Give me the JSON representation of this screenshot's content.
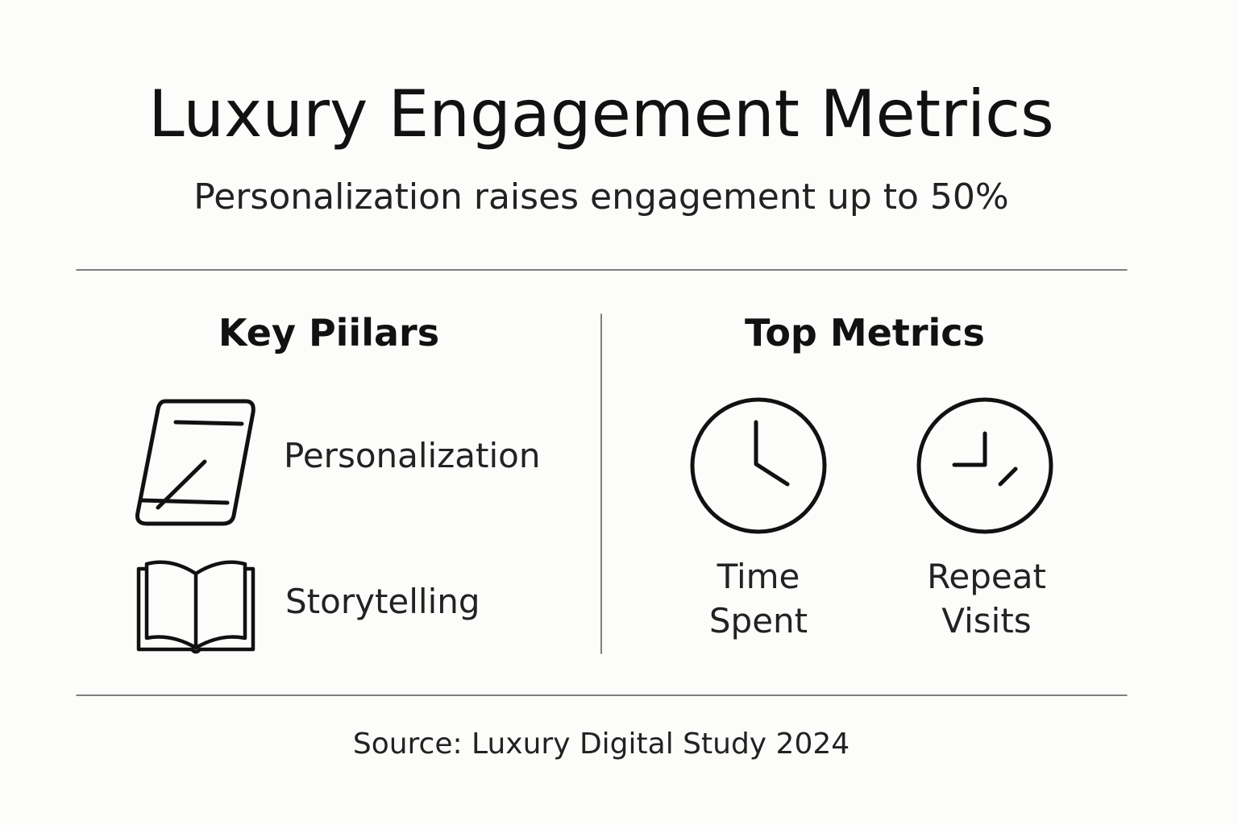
{
  "header": {
    "title": "Luxury Engagement Metrics",
    "subtitle": "Personalization raises engagement up to 50%"
  },
  "pillars": {
    "title": "Key Piilars",
    "items": [
      {
        "label": "Personalization"
      },
      {
        "label": "Storytelling"
      }
    ]
  },
  "metrics": {
    "title": "Top Metrics",
    "items": [
      {
        "label": "Time Spent"
      },
      {
        "label": "Repeat Visits"
      }
    ]
  },
  "footer": {
    "source": "Source: Luxury Digital Study 2024"
  }
}
